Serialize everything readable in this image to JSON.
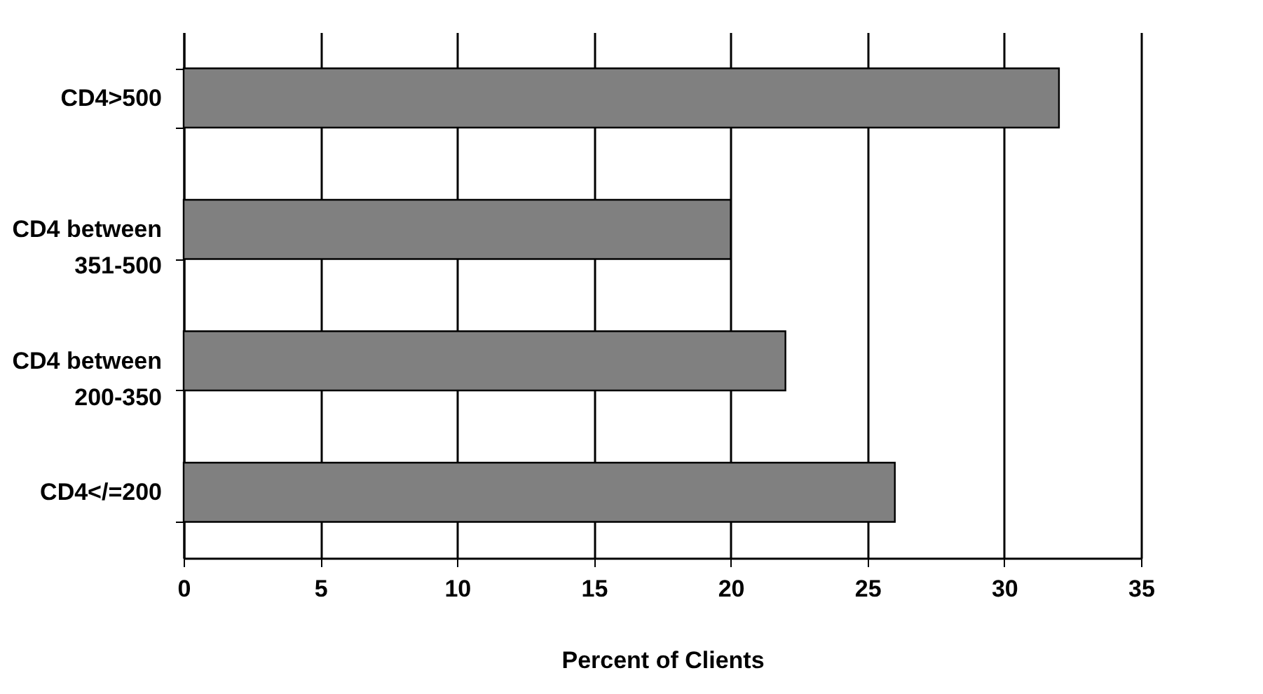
{
  "chart_data": {
    "type": "bar",
    "orientation": "horizontal",
    "categories": [
      "CD4>500",
      "CD4 between 351-500",
      "CD4 between 200-350",
      "CD4</=200"
    ],
    "values": [
      32,
      20,
      22,
      26
    ],
    "color": "#808080",
    "xlabel": "Percent of Clients",
    "xlim": [
      0,
      35
    ],
    "xticks": [
      0,
      5,
      10,
      15,
      20,
      25,
      30,
      35
    ],
    "grid": "x"
  }
}
